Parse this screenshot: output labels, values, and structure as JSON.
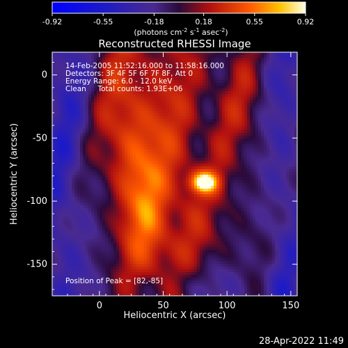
{
  "chart_data": {
    "type": "heatmap",
    "title": "Reconstructed RHESSI Image",
    "xlabel": "Heliocentric X (arcsec)",
    "ylabel": "Heliocentric Y (arcsec)",
    "xlim": [
      -37,
      155
    ],
    "ylim": [
      -175,
      18
    ],
    "xticks": [
      0,
      50,
      100,
      150
    ],
    "yticks": [
      0,
      -50,
      -100,
      -150
    ],
    "colorbar": {
      "ticks": [
        "-0.92",
        "-0.55",
        "-0.18",
        "0.18",
        "0.55",
        "0.92"
      ],
      "range": [
        -0.92,
        0.92
      ],
      "unit_parts": [
        "(photons cm",
        "-2",
        " s",
        "-1",
        " asec",
        "-2",
        ")"
      ]
    },
    "annotations": [
      "14-Feb-2005 11:52:16.000 to 11:58:16.000",
      "Detectors: 3F 4F 5F 6F 7F 8F, Att 0",
      "Energy Range: 6.0 - 12.0 keV",
      "Clean     Total counts: 1.93E+06"
    ],
    "peak_label": "Position of Peak = [82,-85]",
    "peak": [
      82,
      -85
    ],
    "peak_value": 0.92,
    "timestamp": "28-Apr-2022 11:49"
  }
}
